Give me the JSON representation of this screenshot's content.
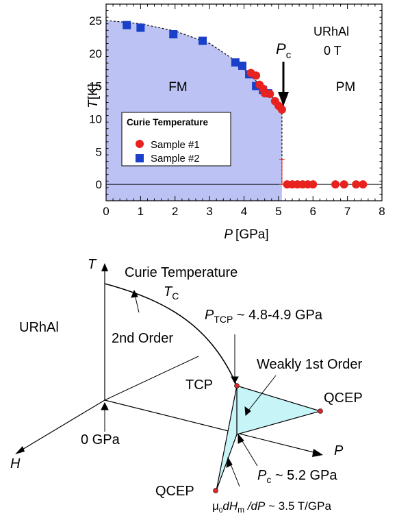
{
  "chart_data": [
    {
      "type": "scatter",
      "title": "",
      "xlabel_symbol": "P",
      "xlabel_unit": "[GPa]",
      "ylabel_symbol": "T",
      "ylabel_unit": "[K]",
      "xlim": [
        0,
        8
      ],
      "ylim": [
        -2.5,
        27.5
      ],
      "xticks": [
        0,
        1,
        2,
        3,
        4,
        5,
        6,
        7,
        8
      ],
      "yticks": [
        0,
        5,
        10,
        15,
        20,
        25
      ],
      "grid": false,
      "legend": {
        "title": "Curie Temperature",
        "placement": "center-left",
        "entries": [
          "Sample #1",
          "Sample #2"
        ]
      },
      "series": [
        {
          "name": "Sample #1",
          "marker": "circle",
          "color": "#e8221e",
          "points": [
            [
              4.2,
              17.0
            ],
            [
              4.35,
              16.6
            ],
            [
              4.45,
              15.2
            ],
            [
              4.55,
              14.6
            ],
            [
              4.6,
              13.9
            ],
            [
              4.75,
              13.8
            ],
            [
              4.9,
              12.7
            ],
            [
              5.0,
              12.0
            ],
            [
              5.05,
              11.8
            ],
            [
              5.1,
              11.4
            ],
            [
              5.25,
              0
            ],
            [
              5.4,
              0
            ],
            [
              5.55,
              0
            ],
            [
              5.7,
              0
            ],
            [
              5.85,
              0
            ],
            [
              6.0,
              0
            ],
            [
              6.65,
              0
            ],
            [
              6.9,
              0
            ],
            [
              7.25,
              0
            ],
            [
              7.45,
              0
            ]
          ]
        },
        {
          "name": "Sample #2",
          "marker": "square",
          "color": "#1a3fc8",
          "points": [
            [
              0.6,
              24.3
            ],
            [
              1.0,
              23.9
            ],
            [
              1.95,
              22.9
            ],
            [
              2.8,
              21.9
            ],
            [
              3.75,
              18.6
            ],
            [
              3.95,
              18.1
            ],
            [
              4.15,
              16.8
            ],
            [
              4.35,
              15.0
            ],
            [
              4.55,
              14.4
            ],
            [
              4.7,
              13.9
            ]
          ]
        }
      ],
      "fm_boundary": [
        [
          0,
          25
        ],
        [
          1,
          24.5
        ],
        [
          2,
          23.4
        ],
        [
          3,
          21.5
        ],
        [
          3.6,
          19.4
        ],
        [
          4,
          17.6
        ],
        [
          4.5,
          15
        ],
        [
          5,
          12.4
        ],
        [
          5.1,
          11.5
        ]
      ],
      "region_labels": [
        "FM",
        "PM"
      ],
      "annotations": {
        "sample": "URhAl",
        "field": "0 T",
        "pc_symbol": "P",
        "pc_sub": "c"
      },
      "fill_color": "#bcc3f4"
    },
    {
      "type": "diagram",
      "labels": {
        "t_axis": "T",
        "h_axis": "H",
        "p_axis": "P",
        "sample": "URhAl",
        "curie": "Curie Temperature",
        "tc_main": "T",
        "tc_sub": "C",
        "second_order": "2nd Order",
        "ptcp_main": "P",
        "ptcp_sub": "TCP",
        "ptcp_value": " ~ 4.8-4.9 GPa",
        "weakly_first": "Weakly 1st Order",
        "tcp": "TCP",
        "qcep_right": "QCEP",
        "qcep_bottom": "QCEP",
        "zero_gpa": "0 GPa",
        "pc_main": "P",
        "pc_sub": "c",
        "pc_value": " ~ 5.2 GPa",
        "slope_mu": "μ",
        "slope_mu_sub": "0",
        "slope_d1": "d",
        "slope_h": "H",
        "slope_h_sub": "m",
        "slope_rest": " /dP",
        "slope_value": "  ~ 3.5 T/GPa"
      },
      "wing_color": "#c6f4f7",
      "point_color": "#d8282a"
    }
  ]
}
